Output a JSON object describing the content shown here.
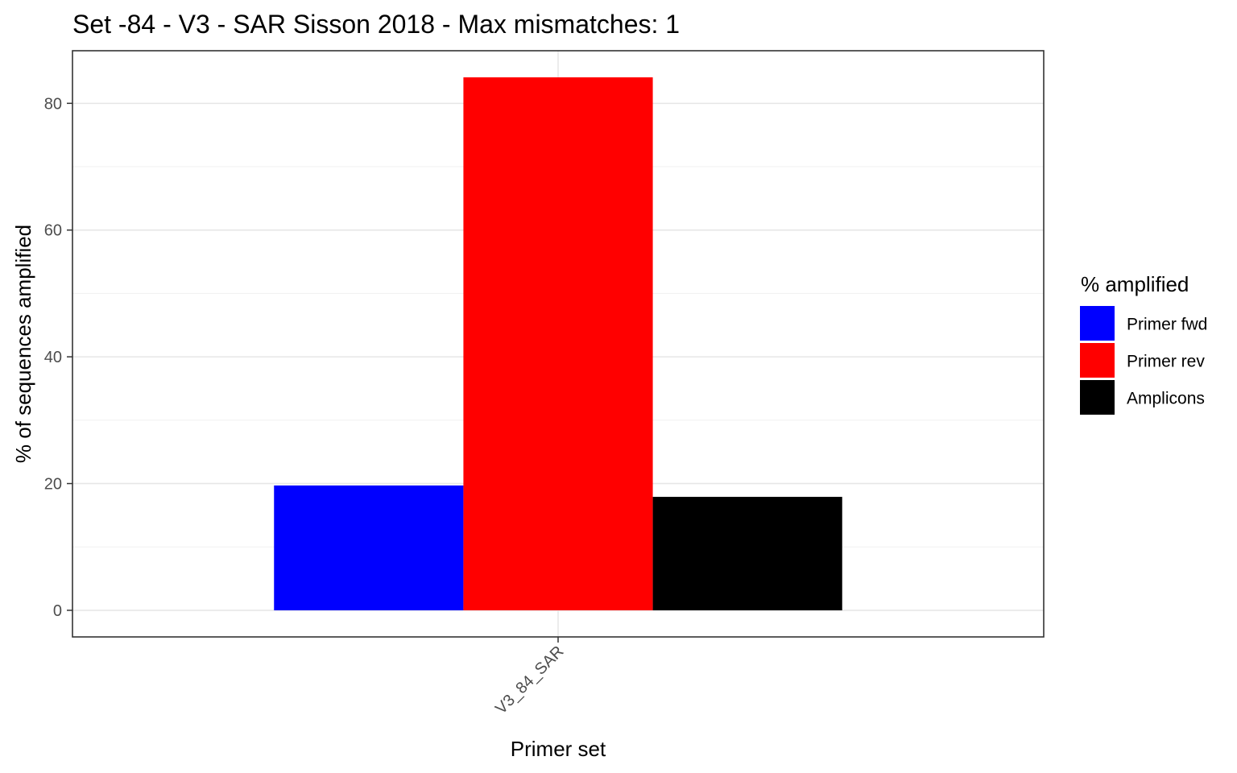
{
  "chart_data": {
    "type": "bar",
    "title": "Set -84 - V3 - SAR Sisson 2018 - Max mismatches: 1",
    "xlabel": "Primer set",
    "ylabel": "% of sequences amplified",
    "categories": [
      "V3_84_SAR"
    ],
    "series": [
      {
        "name": "Primer fwd",
        "color": "#0000ff",
        "values": [
          19.7
        ]
      },
      {
        "name": "Primer rev",
        "color": "#ff0000",
        "values": [
          84.1
        ]
      },
      {
        "name": "Amplicons",
        "color": "#000000",
        "values": [
          17.9
        ]
      }
    ],
    "ylim": [
      -4.2,
      88.3
    ],
    "yticks": [
      0,
      20,
      40,
      60,
      80
    ],
    "ytick_labels": [
      "0",
      "20",
      "40",
      "60",
      "80"
    ],
    "grid": true,
    "legend": {
      "title": "% amplified",
      "position": "right"
    }
  }
}
